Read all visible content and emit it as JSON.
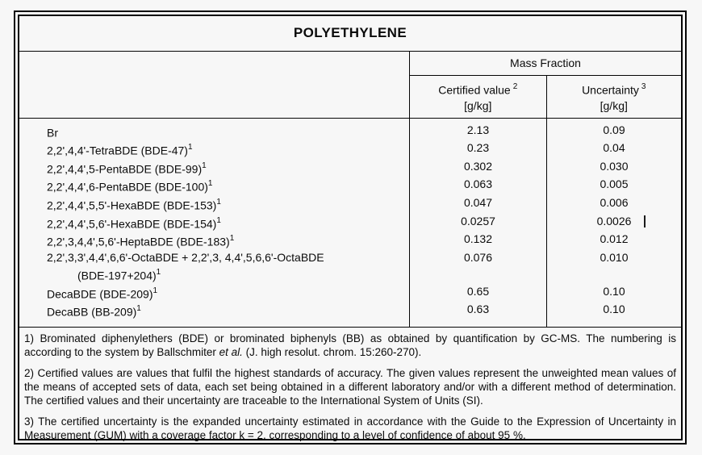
{
  "title": "POLYETHYLENE",
  "table": {
    "group_header": "Mass Fraction",
    "columns": [
      {
        "label": "Certified value",
        "sup": "2",
        "unit": "[g/kg]"
      },
      {
        "label": "Uncertainty",
        "sup": "3",
        "unit": "[g/kg]"
      }
    ],
    "rows": [
      {
        "name": "Br",
        "certified": "2.13",
        "uncertainty": "0.09"
      },
      {
        "name": "2,2',4,4'-TetraBDE (BDE-47)",
        "sup": "1",
        "certified": "0.23",
        "uncertainty": "0.04"
      },
      {
        "name": "2,2',4,4',5-PentaBDE (BDE-99)",
        "sup": "1",
        "certified": "0.302",
        "uncertainty": "0.030"
      },
      {
        "name": "2,2',4,4',6-PentaBDE (BDE-100)",
        "sup": "1",
        "certified": "0.063",
        "uncertainty": "0.005"
      },
      {
        "name": "2,2',4,4',5,5'-HexaBDE (BDE-153)",
        "sup": "1",
        "certified": "0.047",
        "uncertainty": "0.006"
      },
      {
        "name": "2,2',4,4',5,6'-HexaBDE (BDE-154)",
        "sup": "1",
        "certified": "0.0257",
        "uncertainty": "0.0026"
      },
      {
        "name": "2,2',3,4,4',5,6'-HeptaBDE (BDE-183)",
        "sup": "1",
        "certified": "0.132",
        "uncertainty": "0.012"
      },
      {
        "name": "2,2',3,3',4,4',6,6'-OctaBDE + 2,2',3, 4,4',5,6,6'-OctaBDE",
        "name2": "(BDE-197+204)",
        "sup2": "1",
        "certified": "0.076",
        "uncertainty": "0.010"
      },
      {
        "name": "DecaBDE (BDE-209)",
        "sup": "1",
        "certified": "0.65",
        "uncertainty": "0.10"
      },
      {
        "name": "DecaBB (BB-209)",
        "sup": "1",
        "certified": "0.63",
        "uncertainty": "0.10"
      }
    ]
  },
  "footnotes": {
    "f1": {
      "pre": "1) Brominated diphenylethers (BDE) or brominated biphenyls (BB) as obtained by quantification by GC-MS. The numbering is according to the system by Ballschmiter ",
      "italic": "et al.",
      "post": " (J. high resolut. chrom. 15:260-270)."
    },
    "f2": "2) Certified values are values that fulfil the highest standards of accuracy. The given values represent the unweighted mean values of the means of accepted sets of data, each set being obtained in a different laboratory and/or with a different method of determination. The certified values and their uncertainty are traceable to the International System of Units (SI).",
    "f3": "3) The certified uncertainty is the expanded uncertainty estimated in accordance with the Guide to the Expression of Uncertainty in Measurement (GUM) with a coverage factor k = 2, corresponding to a level of confidence of about 95 %."
  },
  "colors": {
    "ink": "#0b0b0b",
    "paper": "#f7f7f7",
    "frame": "#050505"
  }
}
